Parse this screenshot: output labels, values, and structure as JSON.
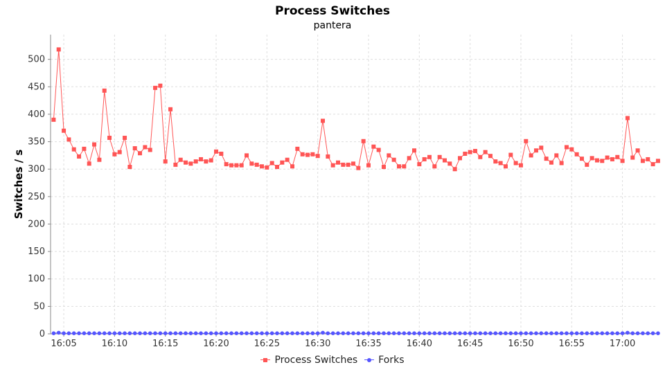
{
  "chart_data": {
    "type": "line",
    "title": "Process Switches",
    "subtitle": "pantera",
    "ylabel": "Switches / s",
    "xlabel": "",
    "ylim": [
      0,
      545
    ],
    "xlim": [
      "16:03:40",
      "16:03:00"
    ],
    "x_axis_start_minutes": 963.7,
    "x_axis_end_minutes": 1023.3,
    "sample_interval_minutes": 0.5,
    "first_sample_minutes": 964.0,
    "x_tick_labels": [
      "16:05",
      "16:10",
      "16:15",
      "16:20",
      "16:25",
      "16:30",
      "16:35",
      "16:40",
      "16:45",
      "16:50",
      "16:55",
      "17:00"
    ],
    "x_tick_minutes": [
      965,
      970,
      975,
      980,
      985,
      990,
      995,
      1000,
      1005,
      1010,
      1015,
      1020
    ],
    "y_ticks": [
      0,
      50,
      100,
      150,
      200,
      250,
      300,
      350,
      400,
      450,
      500
    ],
    "grid": true,
    "legend_position": "bottom",
    "series": [
      {
        "name": "Process Switches",
        "color": "#ff5555",
        "marker": "square",
        "values": [
          390,
          518,
          370,
          354,
          336,
          323,
          337,
          310,
          345,
          317,
          443,
          357,
          327,
          331,
          357,
          304,
          338,
          329,
          340,
          335,
          448,
          452,
          314,
          409,
          308,
          317,
          312,
          310,
          314,
          318,
          314,
          316,
          332,
          328,
          309,
          307,
          307,
          307,
          325,
          310,
          308,
          305,
          303,
          311,
          304,
          312,
          317,
          305,
          337,
          327,
          326,
          327,
          324,
          388,
          323,
          307,
          312,
          308,
          308,
          310,
          302,
          351,
          307,
          341,
          335,
          304,
          325,
          317,
          305,
          305,
          320,
          334,
          309,
          318,
          322,
          305,
          322,
          316,
          310,
          300,
          320,
          328,
          331,
          333,
          322,
          331,
          324,
          314,
          311,
          305,
          326,
          311,
          307,
          351,
          325,
          334,
          339,
          319,
          312,
          325,
          311,
          340,
          336,
          327,
          319,
          308,
          320,
          316,
          315,
          321,
          318,
          322,
          315,
          393,
          321,
          334,
          315,
          318,
          309,
          315
        ]
      },
      {
        "name": "Forks",
        "color": "#5555ff",
        "marker": "circle",
        "values": [
          1,
          2,
          1,
          1,
          1,
          1,
          1,
          1,
          1,
          1,
          1,
          1,
          1,
          1,
          1,
          1,
          1,
          1,
          1,
          1,
          1,
          1,
          1,
          1,
          1,
          1,
          1,
          1,
          1,
          1,
          1,
          1,
          1,
          1,
          1,
          1,
          1,
          1,
          1,
          1,
          1,
          1,
          1,
          1,
          1,
          1,
          1,
          1,
          1,
          1,
          1,
          1,
          1,
          2,
          1,
          1,
          1,
          1,
          1,
          1,
          1,
          1,
          1,
          1,
          1,
          1,
          1,
          1,
          1,
          1,
          1,
          1,
          1,
          1,
          1,
          1,
          1,
          1,
          1,
          1,
          1,
          1,
          1,
          1,
          1,
          1,
          1,
          1,
          1,
          1,
          1,
          1,
          1,
          1,
          1,
          1,
          1,
          1,
          1,
          1,
          1,
          1,
          1,
          1,
          1,
          1,
          1,
          1,
          1,
          1,
          1,
          1,
          1,
          2,
          1,
          1,
          1,
          1,
          1,
          1
        ]
      }
    ]
  }
}
